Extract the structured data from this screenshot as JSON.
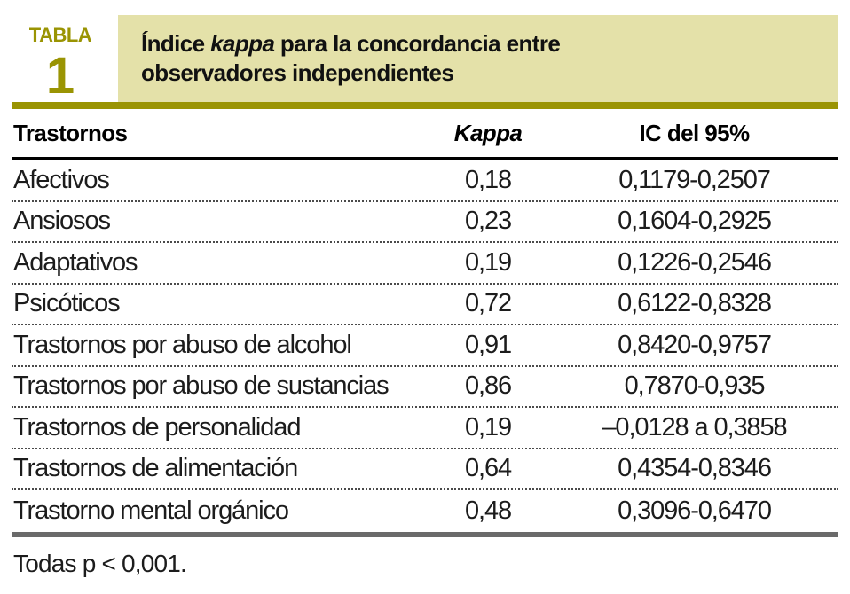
{
  "colors": {
    "olive": "#9a9403",
    "khaki_bar": "#e4e1a9",
    "header_rule": "#000000",
    "bottom_rule": "#6a6a6a",
    "text": "#1c1c1c"
  },
  "badge": {
    "label": "TABLA",
    "number": "1"
  },
  "title": {
    "line1_pre": "Índice ",
    "line1_italic": "kappa",
    "line1_post": " para la concordancia entre",
    "line2": "observadores independientes"
  },
  "table": {
    "columns": [
      {
        "label": "Trastornos",
        "italic": false
      },
      {
        "label": "Kappa",
        "italic": true
      },
      {
        "label": "IC del 95%",
        "italic": false
      }
    ],
    "rows": [
      {
        "trastorno": "Afectivos",
        "kappa": "0,18",
        "ic": "0,1179-0,2507"
      },
      {
        "trastorno": "Ansiosos",
        "kappa": "0,23",
        "ic": "0,1604-0,2925"
      },
      {
        "trastorno": "Adaptativos",
        "kappa": "0,19",
        "ic": "0,1226-0,2546"
      },
      {
        "trastorno": "Psicóticos",
        "kappa": "0,72",
        "ic": "0,6122-0,8328"
      },
      {
        "trastorno": "Trastornos por abuso de alcohol",
        "kappa": "0,91",
        "ic": "0,8420-0,9757"
      },
      {
        "trastorno": "Trastornos por abuso de sustancias",
        "kappa": "0,86",
        "ic": "0,7870-0,935"
      },
      {
        "trastorno": "Trastornos de personalidad",
        "kappa": "0,19",
        "ic": "–0,0128 a 0,3858"
      },
      {
        "trastorno": "Trastornos de alimentación",
        "kappa": "0,64",
        "ic": "0,4354-0,8346"
      },
      {
        "trastorno": "Trastorno mental orgánico",
        "kappa": "0,48",
        "ic": "0,3096-0,6470"
      }
    ]
  },
  "footnote": "Todas p < 0,001."
}
